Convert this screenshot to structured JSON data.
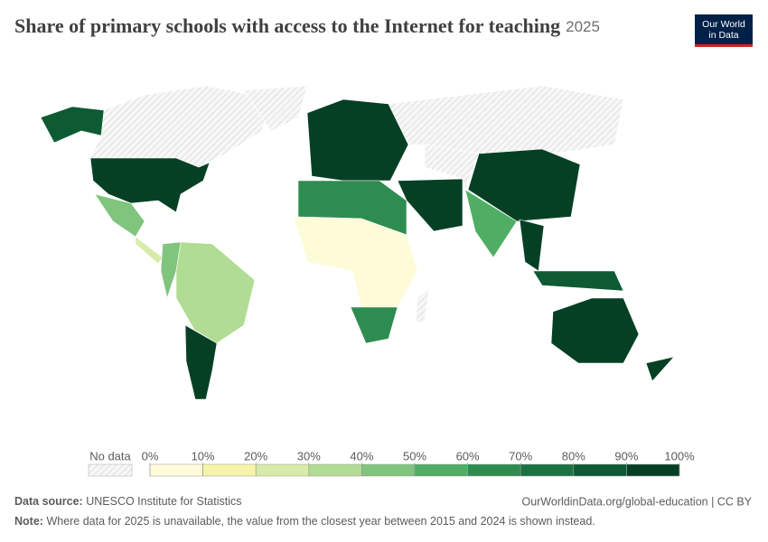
{
  "header": {
    "title": "Share of primary schools with access to the Internet for teaching",
    "year": "2025",
    "logo": [
      "Our World",
      "in Data"
    ]
  },
  "legend": {
    "no_data": "No data",
    "ticks": [
      {
        "value": 0,
        "label": "0%"
      },
      {
        "value": 10,
        "label": "10%"
      },
      {
        "value": 20,
        "label": "20%"
      },
      {
        "value": 30,
        "label": "30%"
      },
      {
        "value": 40,
        "label": "40%"
      },
      {
        "value": 50,
        "label": "50%"
      },
      {
        "value": 60,
        "label": "60%"
      },
      {
        "value": 70,
        "label": "70%"
      },
      {
        "value": 80,
        "label": "80%"
      },
      {
        "value": 90,
        "label": "90%"
      },
      {
        "value": 100,
        "label": "100%"
      }
    ],
    "colors": [
      "#fefbd8",
      "#f6f4a8",
      "#d8eba9",
      "#b1dc94",
      "#80c47e",
      "#4fae64",
      "#2f8c50",
      "#1a7240",
      "#0d5a33",
      "#064024"
    ]
  },
  "footer": {
    "source_label": "Data source:",
    "source": "UNESCO Institute for Statistics",
    "link": "OurWorldinData.org/global-education | CC BY",
    "note_label": "Note:",
    "note": "Where data for 2025 is unavailable, the value from the closest year between 2015 and 2024 is shown instead."
  }
}
